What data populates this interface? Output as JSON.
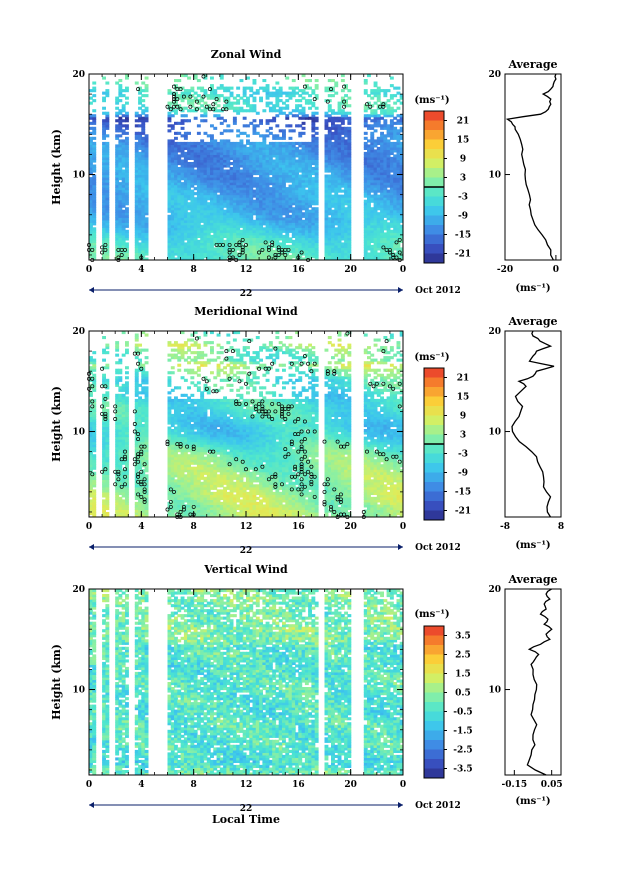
{
  "figure": {
    "date_label": "Oct 2012",
    "day_label": "22",
    "xlabel": "Local Time"
  },
  "panels": [
    {
      "title": "Zonal Wind",
      "ylabel": "Height (km)",
      "unit": "(ms⁻¹)",
      "avg_title": "Average",
      "avg_unit": "(ms⁻¹)"
    },
    {
      "title": "Meridional Wind",
      "ylabel": "Height (km)",
      "unit": "(ms⁻¹)",
      "avg_title": "Average",
      "avg_unit": "(ms⁻¹)"
    },
    {
      "title": "Vertical Wind",
      "ylabel": "Height (km)",
      "unit": "(ms⁻¹)",
      "avg_title": "Average",
      "avg_unit": "(ms⁻¹)"
    }
  ],
  "chart_data": [
    {
      "type": "heatmap",
      "title": "Zonal Wind",
      "xlabel": "Local Time",
      "ylabel": "Height (km)",
      "xlim": [
        0,
        24
      ],
      "ylim": [
        1.5,
        20
      ],
      "x_ticks": [
        "0",
        "4",
        "8",
        "12",
        "16",
        "20",
        "0"
      ],
      "y_ticks": [
        "10",
        "20"
      ],
      "colorbar": {
        "unit": "(ms⁻¹)",
        "range": [
          -24,
          24
        ],
        "ticks": [
          "21",
          "15",
          "9",
          "3",
          "-3",
          "-9",
          "-15",
          "-21"
        ],
        "zero_contour": true
      },
      "colormap": [
        "#2b2c88",
        "#3a56c8",
        "#3f8ee6",
        "#3cc4ee",
        "#4ce5d0",
        "#8ff0a0",
        "#d9ef5f",
        "#fbd038",
        "#f7882c",
        "#e8332c"
      ],
      "data_gaps_hours": [
        [
          0.3,
          0.8
        ],
        [
          1.5,
          1.9
        ],
        [
          2.8,
          3.3
        ],
        [
          4.3,
          5.8
        ],
        [
          17.3,
          18.0
        ],
        [
          19.8,
          20.8
        ]
      ],
      "average_profile": {
        "title": "Average",
        "unit": "(ms⁻¹)",
        "xlim": [
          -20,
          2
        ],
        "x_ticks": [
          "-20",
          "0"
        ],
        "heights": [
          1.5,
          2.5,
          3.5,
          4.5,
          5.5,
          6.5,
          7.5,
          8.5,
          9.5,
          10.5,
          11.5,
          12.5,
          13.5,
          14.5,
          15.0,
          15.5,
          16.0,
          16.5,
          17.0,
          17.5,
          18.0,
          18.5,
          19.0,
          19.5,
          20.0
        ],
        "values": [
          -1,
          -2,
          -4,
          -7,
          -9,
          -10,
          -10,
          -11,
          -12,
          -12,
          -13,
          -13,
          -14,
          -16,
          -17,
          -19,
          -6,
          -3,
          -2,
          -2,
          -5,
          -2,
          -1,
          0,
          0
        ]
      }
    },
    {
      "type": "heatmap",
      "title": "Meridional Wind",
      "xlabel": "Local Time",
      "ylabel": "Height (km)",
      "xlim": [
        0,
        24
      ],
      "ylim": [
        1.5,
        20
      ],
      "x_ticks": [
        "0",
        "4",
        "8",
        "12",
        "16",
        "20",
        "0"
      ],
      "y_ticks": [
        "10",
        "20"
      ],
      "colorbar": {
        "unit": "(ms⁻¹)",
        "range": [
          -24,
          24
        ],
        "ticks": [
          "21",
          "15",
          "9",
          "3",
          "-3",
          "-9",
          "-15",
          "-21"
        ],
        "zero_contour": true
      },
      "colormap": [
        "#2b2c88",
        "#3a56c8",
        "#3f8ee6",
        "#3cc4ee",
        "#4ce5d0",
        "#8ff0a0",
        "#d9ef5f",
        "#fbd038",
        "#f7882c",
        "#e8332c"
      ],
      "data_gaps_hours": [
        [
          0.3,
          0.8
        ],
        [
          1.5,
          1.9
        ],
        [
          2.8,
          3.3
        ],
        [
          4.3,
          5.8
        ],
        [
          17.3,
          18.0
        ],
        [
          19.8,
          20.8
        ]
      ],
      "average_profile": {
        "title": "Average",
        "unit": "(ms⁻¹)",
        "xlim": [
          -8,
          8
        ],
        "x_ticks": [
          "-8",
          "8"
        ],
        "heights": [
          1.5,
          2.5,
          3.5,
          4.5,
          5.5,
          6.5,
          7.5,
          8.5,
          9.5,
          10.5,
          11.5,
          12.5,
          13.5,
          14.5,
          15.0,
          15.5,
          16.0,
          16.5,
          17.0,
          17.5,
          18.0,
          18.5,
          19.0,
          19.5,
          20.0
        ],
        "values": [
          5,
          4,
          5,
          3,
          3,
          2,
          1,
          -2,
          -5,
          -6,
          -4,
          -3,
          -5,
          -2,
          -4,
          0,
          1,
          6,
          -1,
          0,
          1,
          5,
          2,
          0,
          0
        ]
      }
    },
    {
      "type": "heatmap",
      "title": "Vertical Wind",
      "xlabel": "Local Time",
      "ylabel": "Height (km)",
      "xlim": [
        0,
        24
      ],
      "ylim": [
        1.5,
        20
      ],
      "x_ticks": [
        "0",
        "4",
        "8",
        "12",
        "16",
        "20",
        "0"
      ],
      "y_ticks": [
        "10",
        "20"
      ],
      "colorbar": {
        "unit": "(ms⁻¹)",
        "range": [
          -4,
          4
        ],
        "ticks": [
          "3.5",
          "2.5",
          "1.5",
          "0.5",
          "-0.5",
          "-1.5",
          "-2.5",
          "-3.5"
        ],
        "zero_contour": false
      },
      "colormap": [
        "#2b2c88",
        "#3a56c8",
        "#3f8ee6",
        "#3cc4ee",
        "#4ce5d0",
        "#8ff0a0",
        "#d9ef5f",
        "#fbd038",
        "#f7882c",
        "#e8332c"
      ],
      "data_gaps_hours": [
        [
          0.3,
          0.8
        ],
        [
          1.5,
          1.9
        ],
        [
          2.8,
          3.3
        ],
        [
          4.3,
          5.8
        ],
        [
          17.3,
          18.0
        ],
        [
          19.8,
          20.8
        ]
      ],
      "average_profile": {
        "title": "Average",
        "unit": "(ms⁻¹)",
        "xlim": [
          -0.2,
          0.1
        ],
        "x_ticks": [
          "-0.15",
          "0.05"
        ],
        "heights": [
          1.5,
          2.5,
          3.5,
          4.5,
          5.5,
          6.5,
          7.5,
          8.5,
          9.5,
          10.5,
          11.5,
          12.5,
          13.0,
          13.5,
          14.0,
          14.5,
          15.0,
          15.5,
          16.0,
          16.5,
          17.0,
          17.5,
          18.0,
          18.5,
          19.0,
          19.5,
          20.0
        ],
        "values": [
          0.02,
          -0.08,
          -0.06,
          -0.04,
          -0.05,
          -0.03,
          -0.06,
          -0.05,
          -0.04,
          -0.03,
          -0.05,
          -0.06,
          -0.04,
          -0.02,
          -0.07,
          -0.01,
          0.04,
          0.02,
          0.05,
          0.01,
          0.03,
          -0.01,
          0.02,
          0.01,
          0.04,
          0.02,
          0.05
        ]
      }
    }
  ]
}
